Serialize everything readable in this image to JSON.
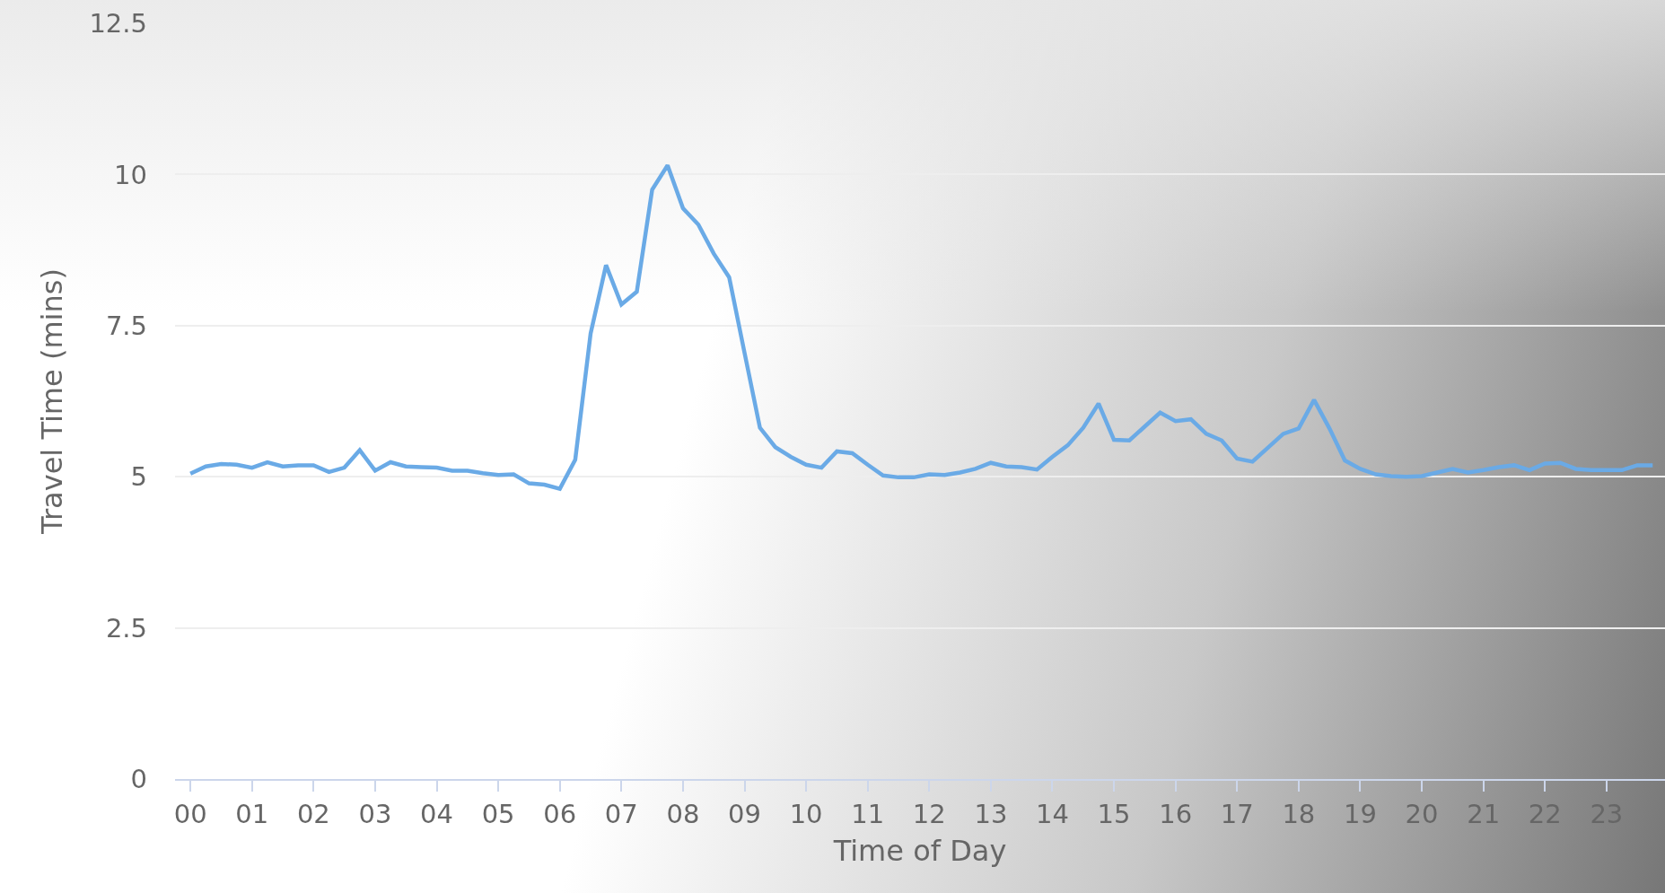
{
  "chart_data": {
    "type": "line",
    "xlabel": "Time of Day",
    "ylabel": "Travel Time (mins)",
    "x": [
      0,
      0.25,
      0.5,
      0.75,
      1,
      1.25,
      1.5,
      1.75,
      2,
      2.25,
      2.5,
      2.75,
      3,
      3.25,
      3.5,
      3.75,
      4,
      4.25,
      4.5,
      4.75,
      5,
      5.25,
      5.5,
      5.75,
      6,
      6.25,
      6.5,
      6.75,
      7,
      7.25,
      7.5,
      7.75,
      8,
      8.25,
      8.5,
      8.75,
      9,
      9.25,
      9.5,
      9.75,
      10,
      10.25,
      10.5,
      10.75,
      11,
      11.25,
      11.5,
      11.75,
      12,
      12.25,
      12.5,
      12.75,
      13,
      13.25,
      13.5,
      13.75,
      14,
      14.25,
      14.5,
      14.75,
      15,
      15.25,
      15.5,
      15.75,
      16,
      16.25,
      16.5,
      16.75,
      17,
      17.25,
      17.5,
      17.75,
      18,
      18.25,
      18.5,
      18.75,
      19,
      19.25,
      19.5,
      19.75,
      20,
      20.25,
      20.5,
      20.75,
      21,
      21.25,
      21.5,
      21.75,
      22,
      22.25,
      22.5,
      22.75,
      23,
      23.25,
      23.5,
      23.75
    ],
    "series": [
      {
        "color": "#6aaae6",
        "values": [
          5.05,
          5.17,
          5.21,
          5.2,
          5.15,
          5.24,
          5.17,
          5.19,
          5.19,
          5.08,
          5.15,
          5.44,
          5.1,
          5.24,
          5.17,
          5.16,
          5.15,
          5.1,
          5.1,
          5.06,
          5.03,
          5.04,
          4.89,
          4.87,
          4.8,
          5.28,
          7.37,
          8.5,
          7.85,
          8.06,
          9.75,
          10.15,
          9.44,
          9.17,
          8.69,
          8.3,
          7.05,
          5.81,
          5.49,
          5.33,
          5.2,
          5.15,
          5.42,
          5.39,
          5.2,
          5.02,
          4.99,
          4.99,
          5.04,
          5.03,
          5.07,
          5.13,
          5.23,
          5.17,
          5.16,
          5.12,
          5.33,
          5.52,
          5.81,
          6.21,
          5.61,
          5.6,
          5.83,
          6.06,
          5.92,
          5.95,
          5.71,
          5.6,
          5.3,
          5.25,
          5.48,
          5.71,
          5.8,
          6.27,
          5.8,
          5.27,
          5.13,
          5.04,
          5.01,
          5.0,
          5.01,
          5.07,
          5.13,
          5.07,
          5.11,
          5.16,
          5.19,
          5.11,
          5.22,
          5.23,
          5.13,
          5.11,
          5.11,
          5.11,
          5.19,
          5.19
        ]
      }
    ],
    "xlim": [
      -0.25,
      23.95
    ],
    "xticks": [
      {
        "value": 0,
        "label": "00"
      },
      {
        "value": 1,
        "label": "01"
      },
      {
        "value": 2,
        "label": "02"
      },
      {
        "value": 3,
        "label": "03"
      },
      {
        "value": 4,
        "label": "04"
      },
      {
        "value": 5,
        "label": "05"
      },
      {
        "value": 6,
        "label": "06"
      },
      {
        "value": 7,
        "label": "07"
      },
      {
        "value": 8,
        "label": "08"
      },
      {
        "value": 9,
        "label": "09"
      },
      {
        "value": 10,
        "label": "10"
      },
      {
        "value": 11,
        "label": "11"
      },
      {
        "value": 12,
        "label": "12"
      },
      {
        "value": 13,
        "label": "13"
      },
      {
        "value": 14,
        "label": "14"
      },
      {
        "value": 15,
        "label": "15"
      },
      {
        "value": 16,
        "label": "16"
      },
      {
        "value": 17,
        "label": "17"
      },
      {
        "value": 18,
        "label": "18"
      },
      {
        "value": 19,
        "label": "19"
      },
      {
        "value": 20,
        "label": "20"
      },
      {
        "value": 21,
        "label": "21"
      },
      {
        "value": 22,
        "label": "22"
      },
      {
        "value": 23,
        "label": "23"
      }
    ],
    "ylim": [
      0,
      12.5
    ],
    "yticks": [
      0,
      2.5,
      5,
      7.5,
      10,
      12.5
    ],
    "grid": "y",
    "marker": "none",
    "line_style": "solid"
  }
}
